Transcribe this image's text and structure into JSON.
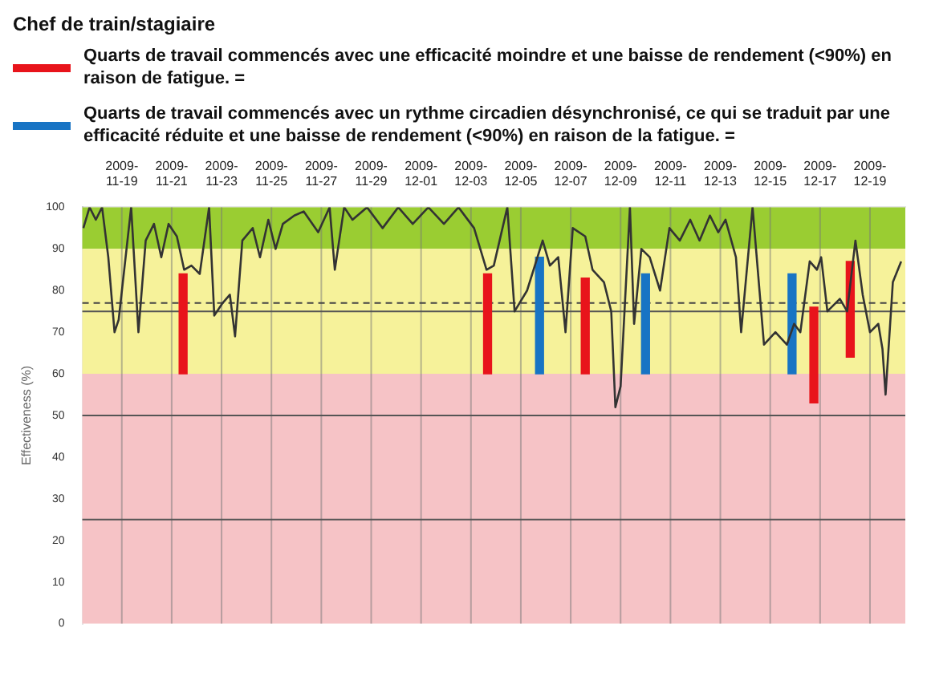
{
  "chart_data": {
    "type": "line",
    "title": "Chef de train/stagiaire",
    "ylabel": "Effectiveness (%)",
    "xlim": [
      "2009-11-17T10:00",
      "2009-12-20T10:00"
    ],
    "xticks": [
      "2009-11-19",
      "2009-11-21",
      "2009-11-23",
      "2009-11-25",
      "2009-11-27",
      "2009-11-29",
      "2009-12-01",
      "2009-12-03",
      "2009-12-05",
      "2009-12-07",
      "2009-12-09",
      "2009-12-11",
      "2009-12-13",
      "2009-12-15",
      "2009-12-17",
      "2009-12-19"
    ],
    "ylim": [
      0,
      100
    ],
    "yticks": [
      0,
      10,
      20,
      30,
      40,
      50,
      60,
      70,
      80,
      90,
      100
    ],
    "grid": "x",
    "legend": "top",
    "marker": "none",
    "line_style": "solid",
    "bands": [
      {
        "axis": "y",
        "from": 90,
        "to": 100,
        "color": "#9acd32"
      },
      {
        "axis": "y",
        "from": 60,
        "to": 90,
        "color": "#f6f29a"
      },
      {
        "axis": "y",
        "from": 0,
        "to": 60,
        "color": "#f6c3c6"
      }
    ],
    "ref_lines": [
      {
        "axis": "y",
        "value": 77,
        "color": "#444444",
        "line_style": "dashed"
      },
      {
        "axis": "y",
        "value": 75,
        "color": "#555555",
        "line_style": "solid"
      },
      {
        "axis": "y",
        "value": 50,
        "color": "#555555",
        "line_style": "solid"
      },
      {
        "axis": "y",
        "value": 25,
        "color": "#555555",
        "line_style": "solid"
      }
    ],
    "series": [
      {
        "color": "#333333",
        "x": [
          "2009-11-17T11:00",
          "2009-11-17T17:00",
          "2009-11-17T23:00",
          "2009-11-18T05:00",
          "2009-11-18T11:00",
          "2009-11-18T17:00",
          "2009-11-18T21:00",
          "2009-11-19T09:00",
          "2009-11-19T16:00",
          "2009-11-19T23:00",
          "2009-11-20T07:00",
          "2009-11-20T14:00",
          "2009-11-20T21:00",
          "2009-11-21T05:00",
          "2009-11-21T12:00",
          "2009-11-21T19:00",
          "2009-11-22T03:00",
          "2009-11-22T12:00",
          "2009-11-22T17:00",
          "2009-11-23T01:00",
          "2009-11-23T08:00",
          "2009-11-23T13:00",
          "2009-11-23T20:00",
          "2009-11-24T06:00",
          "2009-11-24T13:00",
          "2009-11-24T21:00",
          "2009-11-25T04:00",
          "2009-11-25T11:00",
          "2009-11-25T22:00",
          "2009-11-26T07:00",
          "2009-11-26T21:00",
          "2009-11-27T08:00",
          "2009-11-27T13:00",
          "2009-11-27T22:00",
          "2009-11-28T06:00",
          "2009-11-28T20:00",
          "2009-11-29T11:00",
          "2009-11-30T02:00",
          "2009-11-30T16:00",
          "2009-12-01T07:00",
          "2009-12-01T22:00",
          "2009-12-02T12:00",
          "2009-12-03T03:00",
          "2009-12-03T15:00",
          "2009-12-03T22:00",
          "2009-12-04T11:00",
          "2009-12-04T18:00",
          "2009-12-05T06:00",
          "2009-12-05T21:00",
          "2009-12-06T04:00",
          "2009-12-06T12:00",
          "2009-12-06T19:00",
          "2009-12-07T02:00",
          "2009-12-07T14:00",
          "2009-12-07T21:00",
          "2009-12-08T08:00",
          "2009-12-08T15:00",
          "2009-12-08T19:00",
          "2009-12-09T00:00",
          "2009-12-09T09:00",
          "2009-12-09T13:00",
          "2009-12-09T20:00",
          "2009-12-10T04:00",
          "2009-12-10T14:00",
          "2009-12-10T23:00",
          "2009-12-11T09:00",
          "2009-12-11T19:00",
          "2009-12-12T04:00",
          "2009-12-12T14:00",
          "2009-12-12T22:00",
          "2009-12-13T05:00",
          "2009-12-13T15:00",
          "2009-12-13T20:00",
          "2009-12-14T07:00",
          "2009-12-14T18:00",
          "2009-12-15T05:00",
          "2009-12-15T16:00",
          "2009-12-15T23:00",
          "2009-12-16T05:00",
          "2009-12-16T14:00",
          "2009-12-16T21:00",
          "2009-12-17T01:00",
          "2009-12-17T07:00",
          "2009-12-17T19:00",
          "2009-12-18T02:00",
          "2009-12-18T10:00",
          "2009-12-18T17:00",
          "2009-12-19T00:00",
          "2009-12-19T08:00",
          "2009-12-19T12:00",
          "2009-12-19T15:00",
          "2009-12-19T22:00",
          "2009-12-20T06:00"
        ],
        "values": [
          95,
          100,
          97,
          100,
          88,
          70,
          73,
          100,
          70,
          92,
          96,
          88,
          96,
          93,
          85,
          86,
          84,
          100,
          74,
          77,
          79,
          69,
          92,
          95,
          88,
          97,
          90,
          96,
          98,
          99,
          94,
          100,
          85,
          100,
          97,
          100,
          95,
          100,
          96,
          100,
          96,
          100,
          95,
          85,
          86,
          100,
          75,
          80,
          92,
          86,
          88,
          70,
          95,
          93,
          85,
          82,
          75,
          52,
          57,
          100,
          72,
          90,
          88,
          80,
          95,
          92,
          97,
          92,
          98,
          94,
          97,
          88,
          70,
          100,
          67,
          70,
          67,
          72,
          70,
          87,
          85,
          88,
          75,
          78,
          75,
          92,
          79,
          70,
          72,
          66,
          55,
          82,
          87
        ]
      },
      {
        "type": "bar",
        "name": "Quarts de travail commencés avec une efficacité moindre et une baisse de rendement (<90%) en raison de fatigue. =",
        "color": "#e8141b",
        "x": [
          "2009-11-21T11:00",
          "2009-12-03T16:00",
          "2009-12-07T14:00",
          "2009-12-16T18:00",
          "2009-12-18T05:00"
        ],
        "base": [
          60,
          60,
          60,
          53,
          64
        ],
        "values": [
          24,
          24,
          23,
          23,
          23
        ]
      },
      {
        "type": "bar",
        "name": "Quarts de travail commencés avec un rythme circadien désynchronisé, ce qui se traduit par une efficacité réduite et une baisse de rendement (<90%) en raison de la fatigue. =",
        "color": "#1874c4",
        "x": [
          "2009-12-05T18:00",
          "2009-12-10T00:00",
          "2009-12-15T21:00"
        ],
        "base": [
          60,
          60,
          60
        ],
        "values": [
          28,
          24,
          24
        ]
      }
    ]
  }
}
